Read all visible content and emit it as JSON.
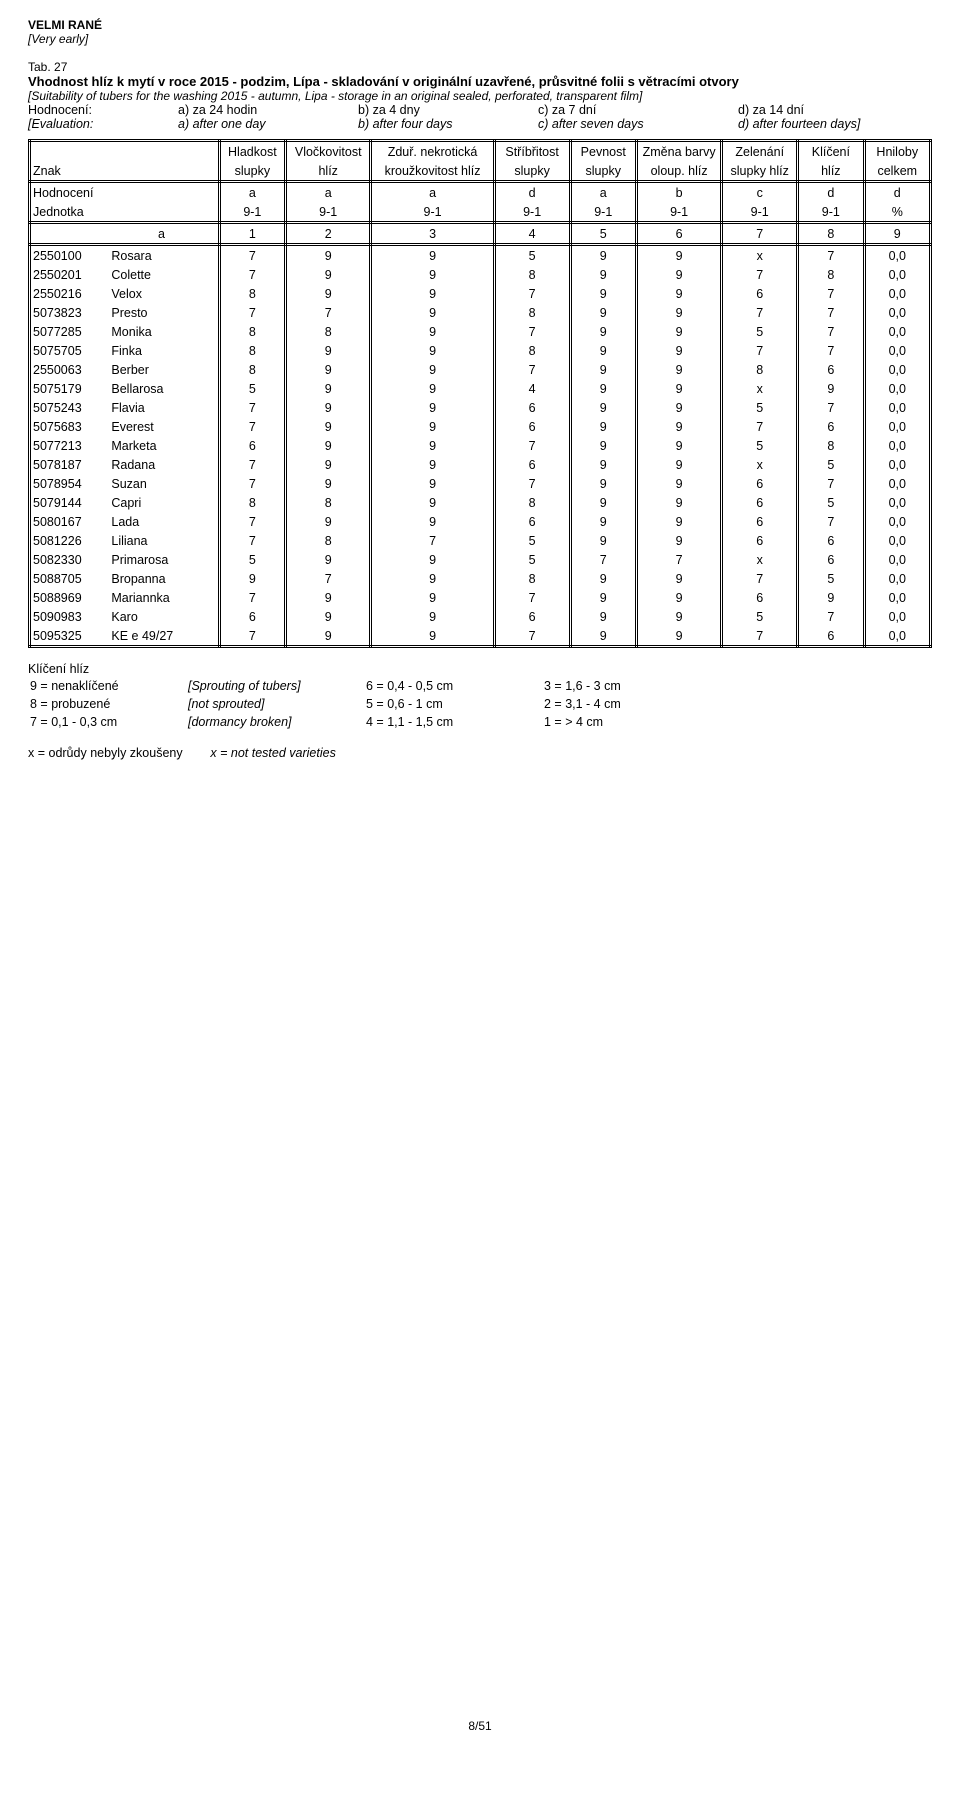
{
  "header": {
    "heading": "VELMI RANÉ",
    "heading_en": "[Very early]",
    "tab": "Tab. 27",
    "title": "Vhodnost hlíz k mytí v roce 2015 - podzim, Lípa - skladování v originální uzavřené, průsvitné folii s větracími otvory",
    "title_en": "[Suitability of tubers for the washing 2015 - autumn, Lipa - storage in an original sealed, perforated, transparent film]",
    "eval_cz": [
      "Hodnocení:",
      "a) za 24 hodin",
      "b) za 4 dny",
      "c) za 7 dní",
      "d) za 14 dní"
    ],
    "eval_en": [
      "[Evaluation:",
      "a) after one day",
      "b) after four days",
      "c) after seven days",
      "d) after fourteen days]"
    ]
  },
  "table": {
    "col_widths_pct": [
      8,
      12,
      7,
      9,
      13,
      8,
      7,
      9,
      8,
      7,
      7
    ],
    "dbl_after_cols": [
      1,
      2,
      3,
      4,
      5,
      6,
      7,
      8,
      9
    ],
    "header_top": [
      "",
      "",
      "Hladkost",
      "Vločkovitost",
      "Zduř. nekrotická",
      "Stříbřitost",
      "Pevnost",
      "Změna barvy",
      "Zelenání",
      "Klíčení",
      "Hniloby"
    ],
    "header_bot": [
      "Znak",
      "",
      "slupky",
      "hlíz",
      "kroužkovitost hlíz",
      "slupky",
      "slupky",
      "oloup. hlíz",
      "slupky hlíz",
      "hlíz",
      "celkem"
    ],
    "hodnoceni": [
      "Hodnocení",
      "",
      "a",
      "a",
      "a",
      "d",
      "a",
      "b",
      "c",
      "d",
      "d"
    ],
    "jednotka": [
      "Jednotka",
      "",
      "9-1",
      "9-1",
      "9-1",
      "9-1",
      "9-1",
      "9-1",
      "9-1",
      "9-1",
      "%"
    ],
    "colnums": [
      "",
      "a",
      "1",
      "2",
      "3",
      "4",
      "5",
      "6",
      "7",
      "8",
      "9"
    ],
    "rows": [
      [
        "2550100",
        "Rosara",
        "7",
        "9",
        "9",
        "5",
        "9",
        "9",
        "x",
        "7",
        "0,0"
      ],
      [
        "2550201",
        "Colette",
        "7",
        "9",
        "9",
        "8",
        "9",
        "9",
        "7",
        "8",
        "0,0"
      ],
      [
        "2550216",
        "Velox",
        "8",
        "9",
        "9",
        "7",
        "9",
        "9",
        "6",
        "7",
        "0,0"
      ],
      [
        "5073823",
        "Presto",
        "7",
        "7",
        "9",
        "8",
        "9",
        "9",
        "7",
        "7",
        "0,0"
      ],
      [
        "5077285",
        "Monika",
        "8",
        "8",
        "9",
        "7",
        "9",
        "9",
        "5",
        "7",
        "0,0"
      ],
      [
        "5075705",
        "Finka",
        "8",
        "9",
        "9",
        "8",
        "9",
        "9",
        "7",
        "7",
        "0,0"
      ],
      [
        "2550063",
        "Berber",
        "8",
        "9",
        "9",
        "7",
        "9",
        "9",
        "8",
        "6",
        "0,0"
      ],
      [
        "5075179",
        "Bellarosa",
        "5",
        "9",
        "9",
        "4",
        "9",
        "9",
        "x",
        "9",
        "0,0"
      ],
      [
        "5075243",
        "Flavia",
        "7",
        "9",
        "9",
        "6",
        "9",
        "9",
        "5",
        "7",
        "0,0"
      ],
      [
        "5075683",
        "Everest",
        "7",
        "9",
        "9",
        "6",
        "9",
        "9",
        "7",
        "6",
        "0,0"
      ],
      [
        "5077213",
        "Marketa",
        "6",
        "9",
        "9",
        "7",
        "9",
        "9",
        "5",
        "8",
        "0,0"
      ],
      [
        "5078187",
        "Radana",
        "7",
        "9",
        "9",
        "6",
        "9",
        "9",
        "x",
        "5",
        "0,0"
      ],
      [
        "5078954",
        "Suzan",
        "7",
        "9",
        "9",
        "7",
        "9",
        "9",
        "6",
        "7",
        "0,0"
      ],
      [
        "5079144",
        "Capri",
        "8",
        "8",
        "9",
        "8",
        "9",
        "9",
        "6",
        "5",
        "0,0"
      ],
      [
        "5080167",
        "Lada",
        "7",
        "9",
        "9",
        "6",
        "9",
        "9",
        "6",
        "7",
        "0,0"
      ],
      [
        "5081226",
        "Liliana",
        "7",
        "8",
        "7",
        "5",
        "9",
        "9",
        "6",
        "6",
        "0,0"
      ],
      [
        "5082330",
        "Primarosa",
        "5",
        "9",
        "9",
        "5",
        "7",
        "7",
        "x",
        "6",
        "0,0"
      ],
      [
        "5088705",
        "Bropanna",
        "9",
        "7",
        "9",
        "8",
        "9",
        "9",
        "7",
        "5",
        "0,0"
      ],
      [
        "5088969",
        "Mariannka",
        "7",
        "9",
        "9",
        "7",
        "9",
        "9",
        "6",
        "9",
        "0,0"
      ],
      [
        "5090983",
        "Karo",
        "6",
        "9",
        "9",
        "6",
        "9",
        "9",
        "5",
        "7",
        "0,0"
      ],
      [
        "5095325",
        "KE e 49/27",
        "7",
        "9",
        "9",
        "7",
        "9",
        "9",
        "7",
        "6",
        "0,0"
      ]
    ]
  },
  "legend": {
    "title": "Klíčení hlíz",
    "rows": [
      [
        "9 = nenaklíčené",
        "[Sprouting of tubers]",
        "6 = 0,4 - 0,5 cm",
        "3 = 1,6 - 3 cm"
      ],
      [
        "8 = probuzené",
        "[not sprouted]",
        "5 = 0,6 - 1 cm",
        "2 = 3,1 - 4 cm"
      ],
      [
        "7 = 0,1 - 0,3 cm",
        "[dormancy broken]",
        "4 = 1,1 - 1,5 cm",
        "1 = > 4 cm"
      ]
    ],
    "note_cz": "x  = odrůdy nebyly zkoušeny",
    "note_en": "x = not tested varieties"
  },
  "footer": "8/51"
}
